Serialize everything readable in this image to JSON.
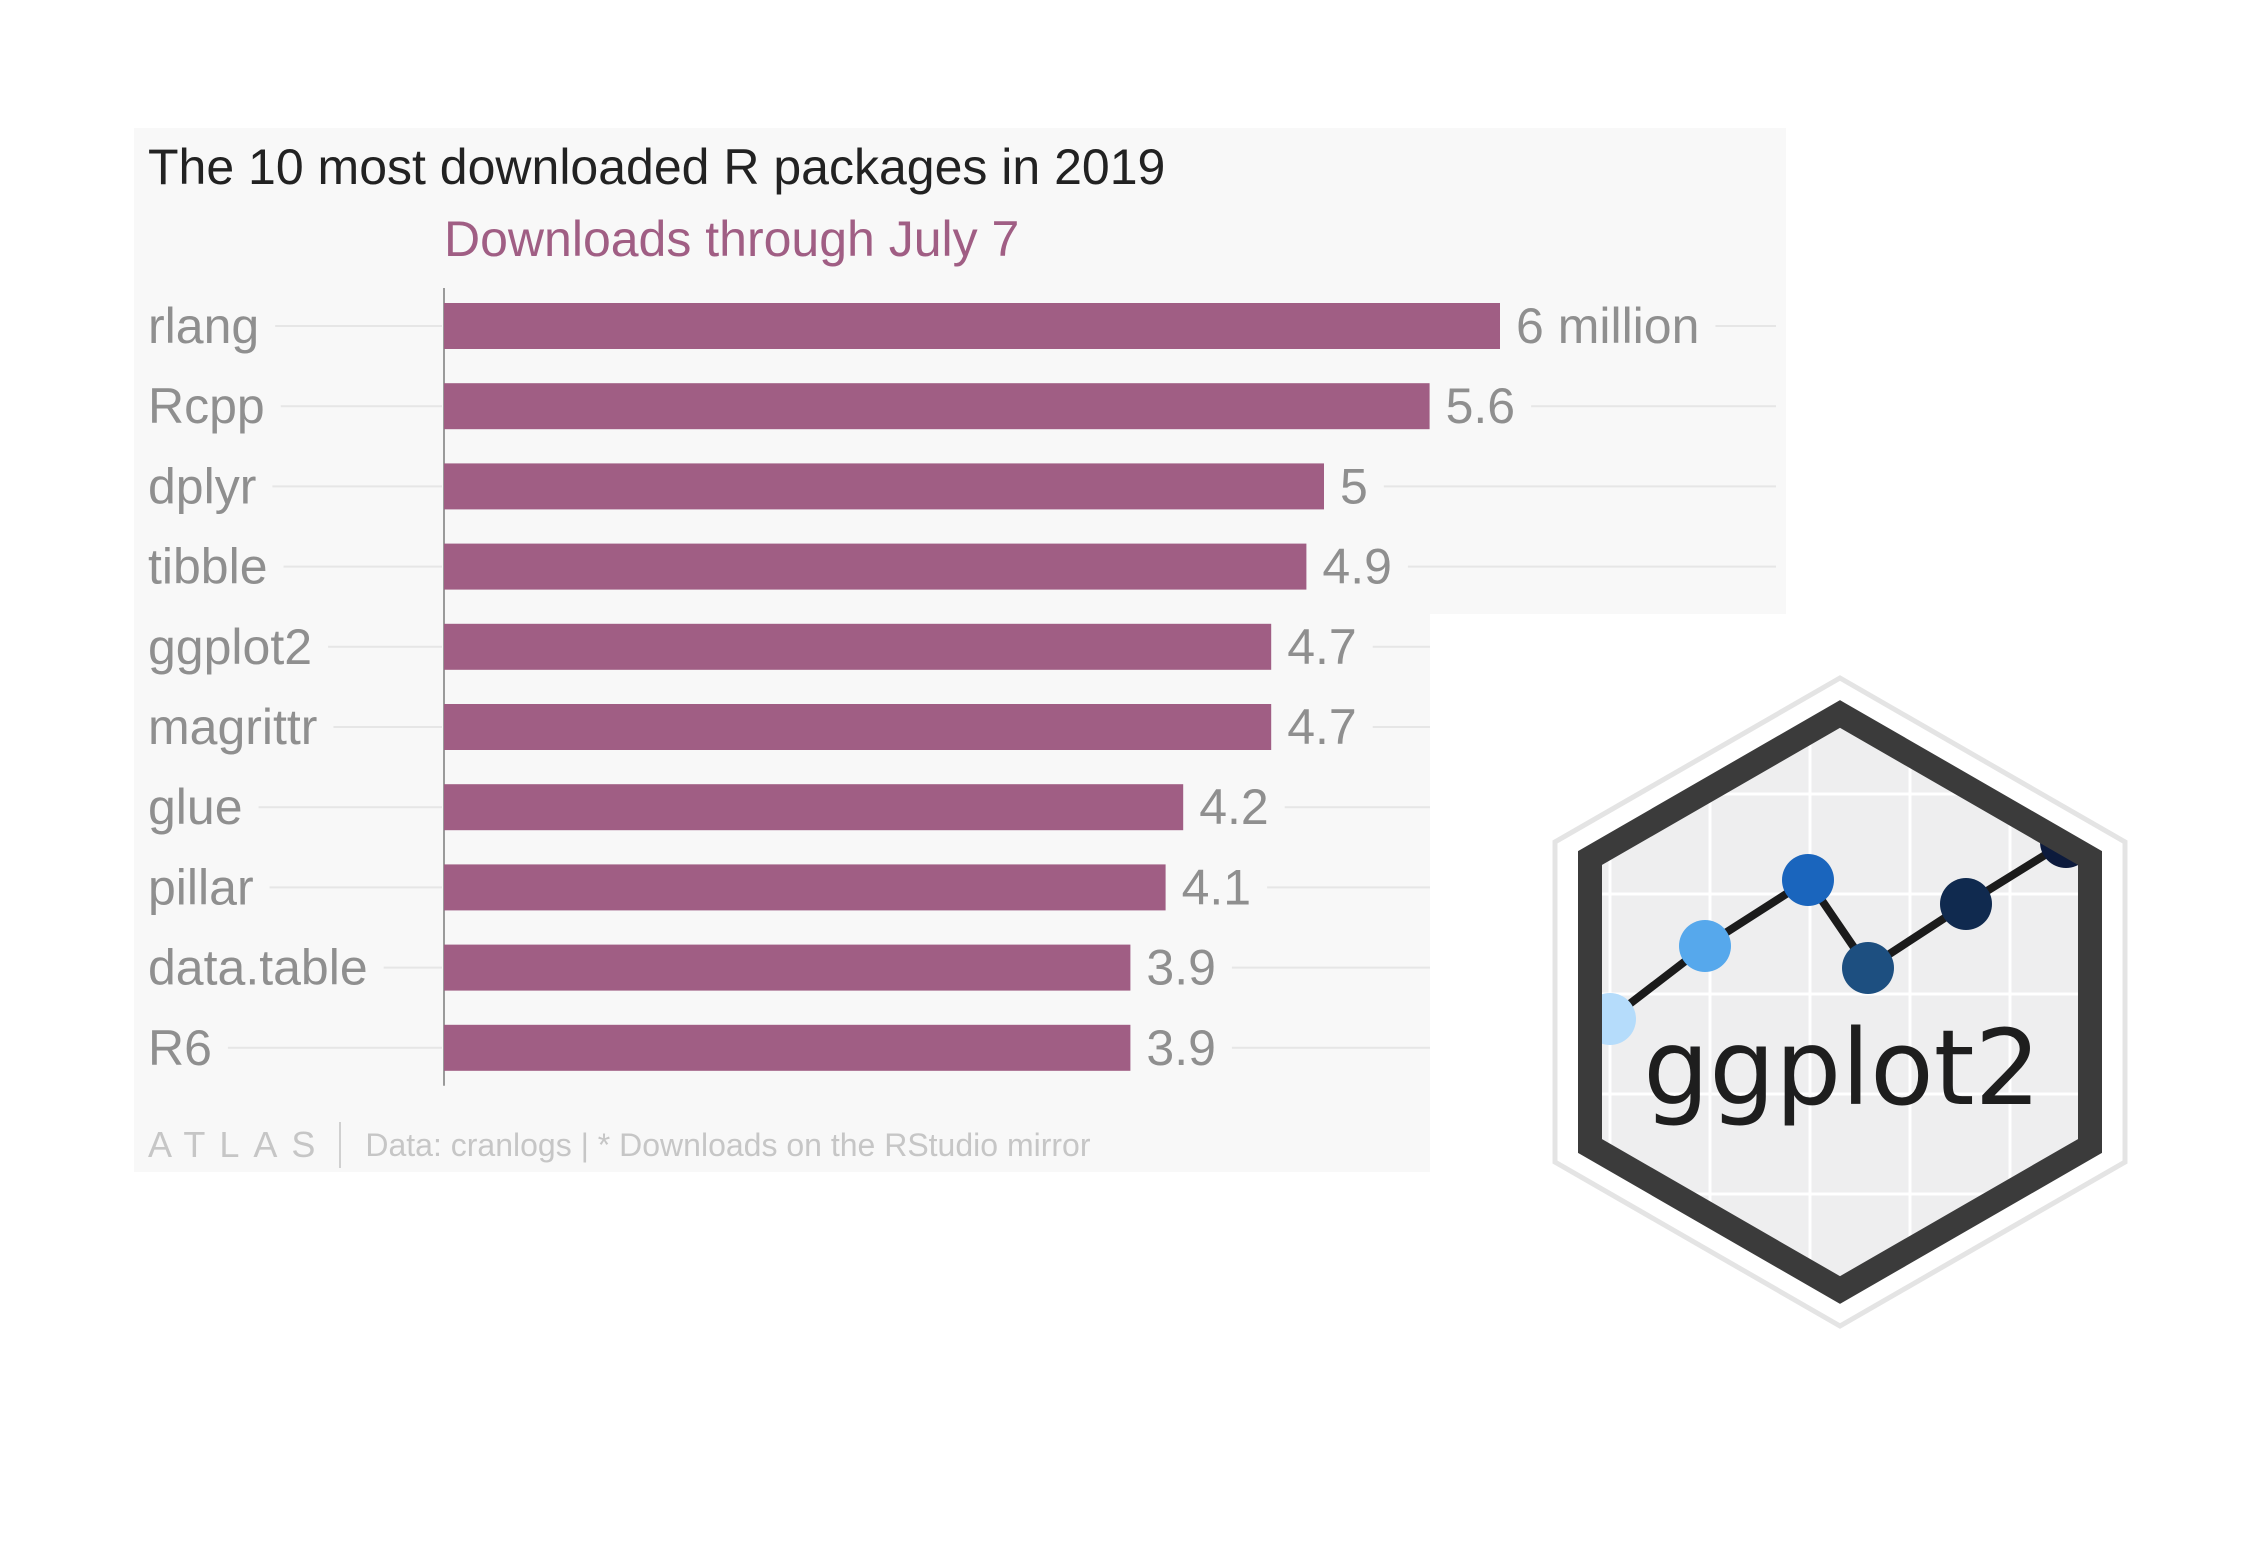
{
  "chart_data": {
    "type": "bar",
    "orientation": "horizontal",
    "title": "The 10 most downloaded R packages in 2019",
    "subtitle": "Downloads through July 7",
    "categories": [
      "rlang",
      "Rcpp",
      "dplyr",
      "tibble",
      "ggplot2",
      "magrittr",
      "glue",
      "pillar",
      "data.table",
      "R6"
    ],
    "values": [
      6,
      5.6,
      5,
      4.9,
      4.7,
      4.7,
      4.2,
      4.1,
      3.9,
      3.9
    ],
    "value_labels": [
      "6 million",
      "5.6",
      "5",
      "4.9",
      "4.7",
      "4.7",
      "4.2",
      "4.1",
      "3.9",
      "3.9"
    ],
    "xlim": [
      0,
      6
    ],
    "bar_color": "#a05e84",
    "subtitle_color": "#a05e84",
    "grid": true
  },
  "footer": {
    "brand": "ATLAS",
    "source": "Data: cranlogs | * Downloads on the RStudio mirror"
  },
  "logo": {
    "name": "ggplot2",
    "url": "www.rstudio.com"
  }
}
